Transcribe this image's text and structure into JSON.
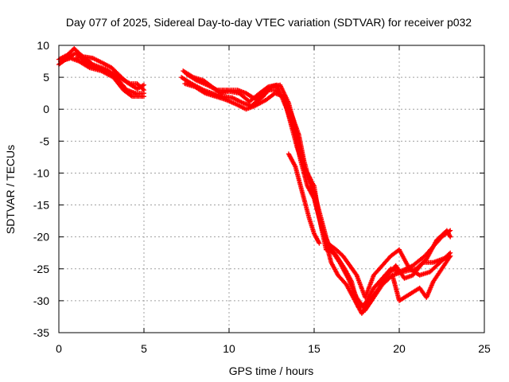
{
  "chart_data": {
    "type": "scatter",
    "title": "Day 077 of 2025, Sidereal Day-to-day VTEC variation (SDTVAR) for receiver p032",
    "xlabel": "GPS time / hours",
    "ylabel": "SDTVAR / TECUs",
    "xlim": [
      0,
      25
    ],
    "ylim": [
      -35,
      10
    ],
    "xticks": [
      0,
      5,
      10,
      15,
      20,
      25
    ],
    "yticks": [
      -35,
      -30,
      -25,
      -20,
      -15,
      -10,
      -5,
      0,
      5,
      10
    ],
    "grid": true,
    "legend": "none",
    "marker_color": "#ff0000",
    "series": [
      {
        "values": [
          [
            0.0,
            7.0
          ],
          [
            0.5,
            8.0
          ],
          [
            1.0,
            8.8
          ],
          [
            1.5,
            7.5
          ],
          [
            2.2,
            6.5
          ],
          [
            3.0,
            5.8
          ],
          [
            3.5,
            4.5
          ],
          [
            4.0,
            3.0
          ],
          [
            4.5,
            2.5
          ],
          [
            5.0,
            2.5
          ]
        ]
      },
      {
        "values": [
          [
            0.0,
            7.8
          ],
          [
            0.5,
            8.5
          ],
          [
            0.9,
            9.5
          ],
          [
            1.3,
            8.5
          ],
          [
            2.0,
            7.0
          ],
          [
            2.8,
            6.2
          ],
          [
            3.5,
            5.0
          ],
          [
            4.2,
            4.0
          ],
          [
            4.6,
            4.0
          ],
          [
            5.0,
            3.0
          ]
        ]
      },
      {
        "values": [
          [
            0.1,
            7.5
          ],
          [
            0.7,
            8.0
          ],
          [
            1.2,
            7.5
          ],
          [
            1.8,
            6.5
          ],
          [
            2.5,
            6.0
          ],
          [
            3.2,
            5.0
          ],
          [
            3.8,
            3.0
          ],
          [
            4.3,
            2.0
          ],
          [
            5.0,
            2.0
          ]
        ]
      },
      {
        "values": [
          [
            1.0,
            8.0
          ],
          [
            1.5,
            8.2
          ],
          [
            2.0,
            8.0
          ],
          [
            2.6,
            7.2
          ],
          [
            3.1,
            6.5
          ],
          [
            3.6,
            5.2
          ],
          [
            4.0,
            4.2
          ],
          [
            4.6,
            3.2
          ],
          [
            5.0,
            3.8
          ]
        ]
      },
      {
        "values": [
          [
            7.2,
            5.0
          ],
          [
            7.8,
            4.0
          ],
          [
            8.5,
            3.0
          ],
          [
            9.0,
            2.5
          ],
          [
            9.6,
            2.0
          ],
          [
            10.2,
            1.8
          ],
          [
            10.8,
            1.0
          ],
          [
            11.3,
            0.5
          ],
          [
            12.0,
            2.0
          ],
          [
            12.5,
            3.5
          ],
          [
            13.0,
            3.8
          ],
          [
            13.5,
            1.0
          ],
          [
            14.0,
            -4.0
          ],
          [
            14.5,
            -10.0
          ],
          [
            15.0,
            -12.0
          ],
          [
            15.3,
            -17.0
          ],
          [
            15.7,
            -22.0
          ],
          [
            16.2,
            -22.5
          ],
          [
            16.8,
            -25.0
          ],
          [
            17.2,
            -27.0
          ],
          [
            17.6,
            -31.0
          ],
          [
            18.0,
            -30.5
          ],
          [
            18.5,
            -28.0
          ],
          [
            19.0,
            -26.5
          ],
          [
            19.5,
            -25.0
          ],
          [
            20.0,
            -25.5
          ],
          [
            20.8,
            -24.5
          ],
          [
            21.5,
            -23.0
          ],
          [
            22.0,
            -21.5
          ],
          [
            22.5,
            -20.0
          ],
          [
            23.0,
            -19.0
          ]
        ]
      },
      {
        "values": [
          [
            7.3,
            6.0
          ],
          [
            7.9,
            5.0
          ],
          [
            8.5,
            4.5
          ],
          [
            9.0,
            3.5
          ],
          [
            9.5,
            2.5
          ],
          [
            10.0,
            2.8
          ],
          [
            10.6,
            2.5
          ],
          [
            11.2,
            1.2
          ],
          [
            11.8,
            2.5
          ],
          [
            12.3,
            3.5
          ],
          [
            12.8,
            3.8
          ],
          [
            13.4,
            0.0
          ],
          [
            13.8,
            -3.0
          ],
          [
            14.2,
            -8.0
          ],
          [
            14.6,
            -12.0
          ],
          [
            15.0,
            -14.0
          ],
          [
            15.5,
            -19.0
          ],
          [
            16.0,
            -22.0
          ],
          [
            16.5,
            -24.0
          ],
          [
            17.0,
            -26.5
          ],
          [
            17.5,
            -29.5
          ],
          [
            18.0,
            -31.5
          ],
          [
            18.5,
            -29.5
          ],
          [
            19.0,
            -27.5
          ],
          [
            19.6,
            -26.0
          ],
          [
            20.2,
            -25.5
          ],
          [
            21.0,
            -25.0
          ],
          [
            21.6,
            -23.5
          ],
          [
            22.2,
            -20.5
          ],
          [
            22.8,
            -19.0
          ],
          [
            23.0,
            -20.0
          ]
        ]
      },
      {
        "values": [
          [
            7.4,
            4.0
          ],
          [
            8.0,
            3.5
          ],
          [
            8.6,
            2.5
          ],
          [
            9.2,
            2.0
          ],
          [
            9.8,
            1.5
          ],
          [
            10.4,
            0.8
          ],
          [
            11.0,
            0.0
          ],
          [
            11.5,
            0.5
          ],
          [
            12.2,
            1.5
          ],
          [
            12.7,
            2.5
          ],
          [
            13.2,
            2.0
          ],
          [
            13.6,
            -2.0
          ],
          [
            14.0,
            -6.0
          ],
          [
            14.4,
            -9.0
          ],
          [
            14.8,
            -11.0
          ],
          [
            15.1,
            -15.0
          ],
          [
            15.6,
            -20.0
          ],
          [
            16.0,
            -24.0
          ],
          [
            16.4,
            -26.0
          ],
          [
            16.9,
            -27.5
          ],
          [
            17.4,
            -30.0
          ],
          [
            17.8,
            -32.0
          ],
          [
            18.3,
            -30.0
          ],
          [
            18.8,
            -28.0
          ],
          [
            19.3,
            -26.0
          ],
          [
            19.8,
            -24.5
          ],
          [
            20.3,
            -26.5
          ],
          [
            20.8,
            -26.0
          ],
          [
            21.4,
            -24.0
          ],
          [
            22.0,
            -24.0
          ],
          [
            22.5,
            -23.5
          ],
          [
            23.0,
            -23.0
          ]
        ]
      },
      {
        "values": [
          [
            7.5,
            5.5
          ],
          [
            8.1,
            4.5
          ],
          [
            8.7,
            3.8
          ],
          [
            9.3,
            3.0
          ],
          [
            10.0,
            3.0
          ],
          [
            10.5,
            3.0
          ],
          [
            11.0,
            2.5
          ],
          [
            11.6,
            1.5
          ],
          [
            12.2,
            3.0
          ],
          [
            12.8,
            3.0
          ],
          [
            13.3,
            1.5
          ],
          [
            13.7,
            -1.0
          ],
          [
            14.1,
            -4.0
          ],
          [
            14.4,
            -8.0
          ],
          [
            14.7,
            -11.0
          ],
          [
            15.0,
            -13.0
          ],
          [
            15.4,
            -17.0
          ],
          [
            15.8,
            -21.0
          ],
          [
            16.3,
            -22.0
          ],
          [
            16.7,
            -23.0
          ],
          [
            17.1,
            -24.5
          ],
          [
            17.5,
            -26.0
          ],
          [
            18.0,
            -29.5
          ],
          [
            18.5,
            -26.0
          ],
          [
            19.0,
            -24.5
          ],
          [
            19.5,
            -23.0
          ],
          [
            20.0,
            -22.0
          ],
          [
            20.6,
            -25.0
          ],
          [
            21.2,
            -26.0
          ],
          [
            21.8,
            -25.5
          ],
          [
            22.4,
            -24.0
          ],
          [
            23.0,
            -22.5
          ]
        ]
      },
      {
        "values": [
          [
            13.5,
            -7.0
          ],
          [
            13.9,
            -9.0
          ],
          [
            14.3,
            -13.0
          ],
          [
            14.7,
            -17.0
          ],
          [
            15.0,
            -19.5
          ],
          [
            15.3,
            -21.0
          ]
        ]
      },
      {
        "values": [
          [
            19.6,
            -26.0
          ],
          [
            19.8,
            -28.0
          ],
          [
            20.0,
            -30.0
          ],
          [
            20.6,
            -29.0
          ],
          [
            21.2,
            -28.0
          ],
          [
            21.6,
            -29.5
          ],
          [
            22.0,
            -27.0
          ],
          [
            22.5,
            -25.0
          ],
          [
            23.0,
            -23.0
          ]
        ]
      }
    ]
  }
}
